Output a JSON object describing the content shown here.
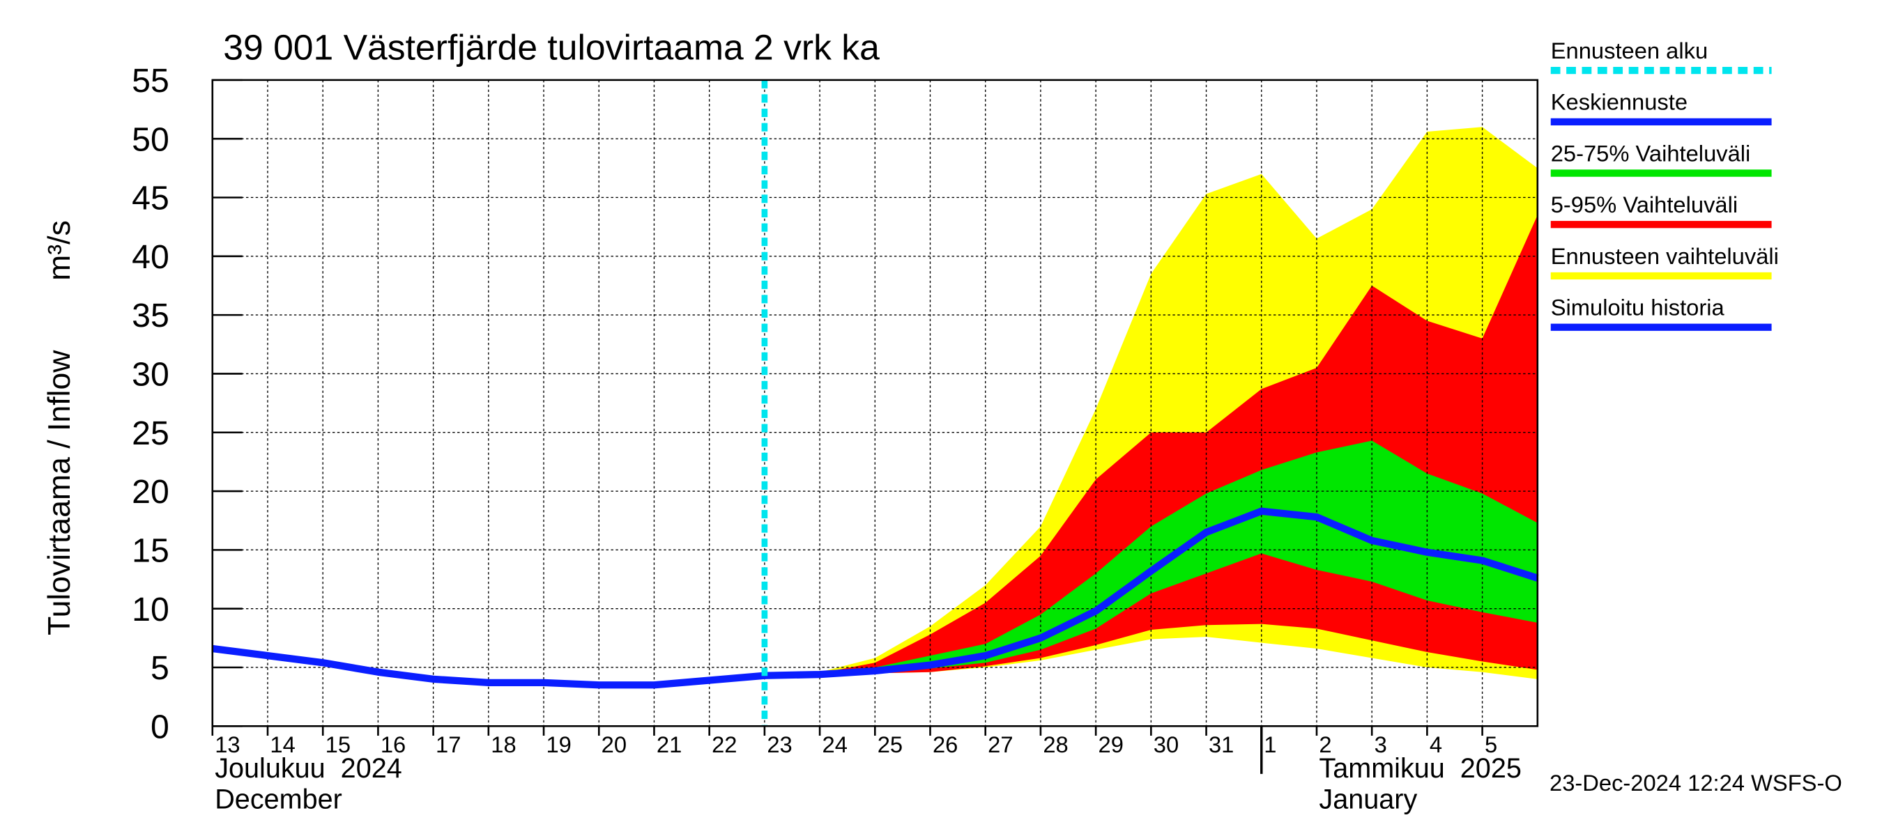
{
  "chart_data": {
    "type": "band-forecast",
    "title": "39 001 Västerfjärde tulovirtaama 2 vrk ka",
    "y_label": "Tulovirtaama / Inflow",
    "y_unit": "m³/s",
    "footer": "23-Dec-2024 12:24 WSFS-O",
    "ylim": [
      0,
      55
    ],
    "yticks": [
      0,
      5,
      10,
      15,
      20,
      25,
      30,
      35,
      40,
      45,
      50,
      55
    ],
    "xlim": [
      "2024-12-13",
      "2025-01-06"
    ],
    "xticks": [
      {
        "value": "2024-12-13",
        "label": "13"
      },
      {
        "value": "2024-12-14",
        "label": "14"
      },
      {
        "value": "2024-12-15",
        "label": "15"
      },
      {
        "value": "2024-12-16",
        "label": "16"
      },
      {
        "value": "2024-12-17",
        "label": "17"
      },
      {
        "value": "2024-12-18",
        "label": "18"
      },
      {
        "value": "2024-12-19",
        "label": "19"
      },
      {
        "value": "2024-12-20",
        "label": "20"
      },
      {
        "value": "2024-12-21",
        "label": "21"
      },
      {
        "value": "2024-12-22",
        "label": "22"
      },
      {
        "value": "2024-12-23",
        "label": "23"
      },
      {
        "value": "2024-12-24",
        "label": "24"
      },
      {
        "value": "2024-12-25",
        "label": "25"
      },
      {
        "value": "2024-12-26",
        "label": "26"
      },
      {
        "value": "2024-12-27",
        "label": "27"
      },
      {
        "value": "2024-12-28",
        "label": "28"
      },
      {
        "value": "2024-12-29",
        "label": "29"
      },
      {
        "value": "2024-12-30",
        "label": "30"
      },
      {
        "value": "2024-12-31",
        "label": "31"
      },
      {
        "value": "2025-01-01",
        "label": "1"
      },
      {
        "value": "2025-01-02",
        "label": "2"
      },
      {
        "value": "2025-01-03",
        "label": "3"
      },
      {
        "value": "2025-01-04",
        "label": "4"
      },
      {
        "value": "2025-01-05",
        "label": "5"
      }
    ],
    "months": [
      {
        "x": "2024-12-13",
        "label": "Joulukuu  2024",
        "label2": "December"
      },
      {
        "x": "2025-01-01",
        "label": "Tammikuu  2025",
        "label2": "January"
      }
    ],
    "grid": true,
    "forecast_start": {
      "name": "Ennusteen alku",
      "x": "2024-12-23",
      "color": "#00e5ee"
    },
    "series": [
      {
        "name": "Keskiennuste",
        "kind": "line",
        "color": "#0a1eff",
        "x": [
          "2024-12-23",
          "2024-12-24",
          "2024-12-25",
          "2024-12-26",
          "2024-12-27",
          "2024-12-28",
          "2024-12-29",
          "2024-12-30",
          "2024-12-31",
          "2025-01-01",
          "2025-01-02",
          "2025-01-03",
          "2025-01-04",
          "2025-01-05",
          "2025-01-06"
        ],
        "values": [
          4.3,
          4.4,
          4.7,
          5.2,
          6.0,
          7.5,
          9.8,
          13.2,
          16.5,
          18.3,
          17.8,
          15.8,
          14.8,
          14.1,
          12.6
        ]
      },
      {
        "name": "25-75% Vaihteluväli",
        "kind": "band",
        "color": "#00e600",
        "x": [
          "2024-12-23",
          "2024-12-24",
          "2024-12-25",
          "2024-12-26",
          "2024-12-27",
          "2024-12-28",
          "2024-12-29",
          "2024-12-30",
          "2024-12-31",
          "2025-01-01",
          "2025-01-02",
          "2025-01-03",
          "2025-01-04",
          "2025-01-05",
          "2025-01-06"
        ],
        "upper": [
          4.3,
          4.45,
          5.0,
          6.0,
          7.0,
          9.5,
          13,
          17,
          19.8,
          21.8,
          23.3,
          24.3,
          21.5,
          19.8,
          17.3
        ],
        "lower": [
          4.3,
          4.4,
          4.6,
          4.9,
          5.4,
          6.5,
          8.3,
          11.3,
          13,
          14.7,
          13.3,
          12.3,
          10.7,
          9.7,
          8.8
        ]
      },
      {
        "name": "5-95% Vaihteluväli",
        "kind": "band",
        "color": "#ff0000",
        "x": [
          "2024-12-23",
          "2024-12-24",
          "2024-12-25",
          "2024-12-26",
          "2024-12-27",
          "2024-12-28",
          "2024-12-29",
          "2024-12-30",
          "2024-12-31",
          "2025-01-01",
          "2025-01-02",
          "2025-01-03",
          "2025-01-04",
          "2025-01-05",
          "2025-01-06"
        ],
        "upper": [
          4.3,
          4.5,
          5.4,
          7.8,
          10.5,
          14.5,
          21,
          25,
          25,
          28.7,
          30.5,
          37.5,
          34.5,
          33,
          43.5
        ],
        "lower": [
          4.3,
          4.4,
          4.5,
          4.6,
          5.1,
          5.8,
          6.9,
          8.2,
          8.6,
          8.7,
          8.3,
          7.3,
          6.3,
          5.5,
          4.8
        ]
      },
      {
        "name": "Ennusteen vaihteluväli",
        "kind": "band",
        "color": "#ffff00",
        "x": [
          "2024-12-23",
          "2024-12-24",
          "2024-12-25",
          "2024-12-26",
          "2024-12-27",
          "2024-12-28",
          "2024-12-29",
          "2024-12-30",
          "2024-12-31",
          "2025-01-01",
          "2025-01-02",
          "2025-01-03",
          "2025-01-04",
          "2025-01-05",
          "2025-01-06"
        ],
        "upper": [
          4.3,
          4.6,
          5.8,
          8.5,
          12,
          17,
          27,
          38.5,
          45.3,
          47,
          41.5,
          44,
          50.6,
          51,
          47.5
        ],
        "lower": [
          4.3,
          4.4,
          4.5,
          4.6,
          5.0,
          5.6,
          6.5,
          7.4,
          7.6,
          7.1,
          6.6,
          5.8,
          5.0,
          4.6,
          4.0
        ]
      },
      {
        "name": "Simuloitu historia",
        "kind": "line",
        "color": "#0a1eff",
        "x": [
          "2024-12-13",
          "2024-12-14",
          "2024-12-15",
          "2024-12-16",
          "2024-12-17",
          "2024-12-18",
          "2024-12-19",
          "2024-12-20",
          "2024-12-21",
          "2024-12-22",
          "2024-12-23"
        ],
        "values": [
          6.6,
          6.0,
          5.4,
          4.6,
          4.0,
          3.7,
          3.7,
          3.5,
          3.5,
          3.9,
          4.3
        ]
      }
    ]
  }
}
